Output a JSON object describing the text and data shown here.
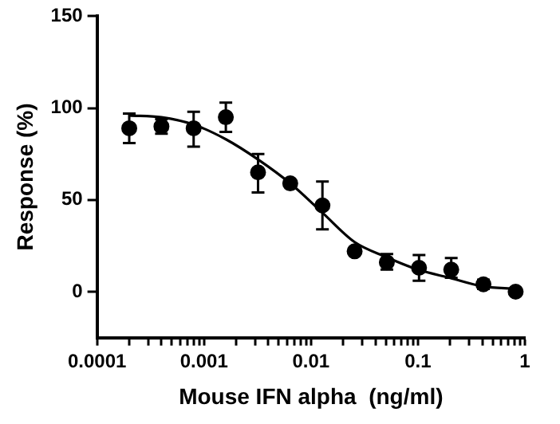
{
  "chart_data": {
    "type": "scatter",
    "xlabel": "Mouse IFN alpha  (ng/ml)",
    "ylabel": "Response (%)",
    "log": "x",
    "xlim": [
      0.0001,
      1
    ],
    "xticks": [
      0.0001,
      {
        "value": 0.0002,
        "label": null
      },
      {
        "value": 0.0003,
        "label": null
      },
      {
        "value": 0.0004,
        "label": null
      },
      {
        "value": 0.0005,
        "label": null
      },
      {
        "value": 0.0006,
        "label": null
      },
      {
        "value": 0.0007,
        "label": null
      },
      {
        "value": 0.0008,
        "label": null
      },
      {
        "value": 0.0009,
        "label": null
      },
      0.001,
      {
        "value": 0.002,
        "label": null
      },
      {
        "value": 0.003,
        "label": null
      },
      {
        "value": 0.004,
        "label": null
      },
      {
        "value": 0.005,
        "label": null
      },
      {
        "value": 0.006,
        "label": null
      },
      {
        "value": 0.007,
        "label": null
      },
      {
        "value": 0.008,
        "label": null
      },
      {
        "value": 0.009,
        "label": null
      },
      0.01,
      {
        "value": 0.02,
        "label": null
      },
      {
        "value": 0.03,
        "label": null
      },
      {
        "value": 0.04,
        "label": null
      },
      {
        "value": 0.05,
        "label": null
      },
      {
        "value": 0.06,
        "label": null
      },
      {
        "value": 0.07,
        "label": null
      },
      {
        "value": 0.08,
        "label": null
      },
      {
        "value": 0.09,
        "label": null
      },
      0.1,
      {
        "value": 0.2,
        "label": null
      },
      {
        "value": 0.3,
        "label": null
      },
      {
        "value": 0.4,
        "label": null
      },
      {
        "value": 0.5,
        "label": null
      },
      {
        "value": 0.6,
        "label": null
      },
      {
        "value": 0.7,
        "label": null
      },
      {
        "value": 0.8,
        "label": null
      },
      {
        "value": 0.9,
        "label": null
      },
      1
    ],
    "ylim": [
      -25,
      150
    ],
    "yticks": [
      0,
      50,
      100,
      150
    ],
    "grid": false,
    "legend": false,
    "marker": "circle",
    "x": [
      0.0002,
      0.0004,
      0.0008,
      0.0016,
      0.0032,
      0.0064,
      0.0128,
      0.0256,
      0.0512,
      0.1024,
      0.2048,
      0.4096,
      0.8192
    ],
    "series": [
      {
        "color": "#000000",
        "values": [
          89,
          90,
          89,
          95,
          65,
          59,
          47,
          22,
          16,
          13,
          12,
          4,
          0
        ],
        "errors": [
          8,
          4,
          [
            79,
            98
          ],
          [
            87,
            103
          ],
          [
            54,
            75
          ],
          null,
          13,
          null,
          [
            12,
            20.5
          ],
          7,
          [
            7.6,
            18.3
          ],
          2.5,
          null
        ]
      },
      {
        "type": "line",
        "color": "#000000",
        "marker": "none",
        "x": [
          0.0002,
          0.0004,
          0.0008,
          0.0016,
          0.0032,
          0.0064,
          0.0128,
          0.0256,
          0.05,
          0.1,
          0.2,
          0.4,
          0.82
        ],
        "values": [
          96,
          95,
          91,
          83,
          72,
          59,
          43,
          27,
          19,
          12,
          7.5,
          3,
          1.5
        ]
      }
    ]
  }
}
